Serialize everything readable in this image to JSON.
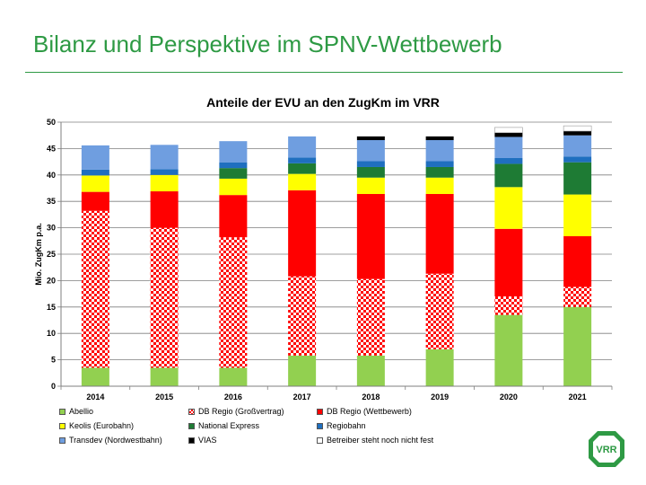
{
  "slide": {
    "title": "Bilanz und Perspektive im SPNV-Wettbewerb"
  },
  "logo": {
    "text": "VRR"
  },
  "colors": {
    "Abellio": "#92d050",
    "DB Regio (Großvertrag)": "checker-red-white",
    "DB Regio (Wettbewerb)": "#ff0000",
    "Keolis (Eurobahn)": "#ffff00",
    "National Express": "#1e7b34",
    "Regiobahn": "#1f6fbf",
    "Transdev (Nordwestbahn)": "#6f9ee0",
    "VIAS": "#000000",
    "Betreiber steht noch nicht fest": "#ffffff"
  },
  "chart_data": {
    "type": "bar",
    "stacked": true,
    "title": "Anteile der EVU an den ZugKm im VRR",
    "xlabel": "",
    "ylabel": "Mio. ZugKm p.a.",
    "ylim": [
      0,
      50
    ],
    "yticks": [
      0,
      5,
      10,
      15,
      20,
      25,
      30,
      35,
      40,
      45,
      50
    ],
    "grid": true,
    "legend_position": "bottom",
    "categories": [
      "2014",
      "2015",
      "2016",
      "2017",
      "2018",
      "2019",
      "2020",
      "2021"
    ],
    "series": [
      {
        "name": "Abellio",
        "values": [
          3.5,
          3.5,
          3.5,
          5.8,
          5.8,
          7.0,
          13.5,
          15.0
        ]
      },
      {
        "name": "DB Regio (Großvertrag)",
        "values": [
          29.7,
          26.5,
          24.7,
          15.0,
          14.5,
          14.3,
          3.5,
          3.8
        ]
      },
      {
        "name": "DB Regio (Wettbewerb)",
        "values": [
          3.6,
          6.9,
          8.0,
          16.3,
          16.1,
          15.1,
          12.8,
          9.6
        ]
      },
      {
        "name": "Keolis (Eurobahn)",
        "values": [
          3.1,
          3.1,
          3.1,
          3.1,
          3.1,
          3.1,
          7.9,
          7.9
        ]
      },
      {
        "name": "National Express",
        "values": [
          0.0,
          0.0,
          2.0,
          2.0,
          2.0,
          2.0,
          4.4,
          6.1
        ]
      },
      {
        "name": "Regiobahn",
        "values": [
          1.1,
          1.1,
          1.1,
          1.1,
          1.1,
          1.1,
          1.1,
          1.1
        ]
      },
      {
        "name": "Transdev (Nordwestbahn)",
        "values": [
          4.6,
          4.6,
          4.0,
          4.0,
          4.0,
          4.0,
          4.0,
          4.0
        ]
      },
      {
        "name": "VIAS",
        "values": [
          0.0,
          0.0,
          0.0,
          0.0,
          0.7,
          0.7,
          0.8,
          0.8
        ]
      },
      {
        "name": "Betreiber steht noch nicht fest",
        "values": [
          0.0,
          0.0,
          0.0,
          0.0,
          0.0,
          0.0,
          1.0,
          1.0
        ]
      }
    ]
  }
}
